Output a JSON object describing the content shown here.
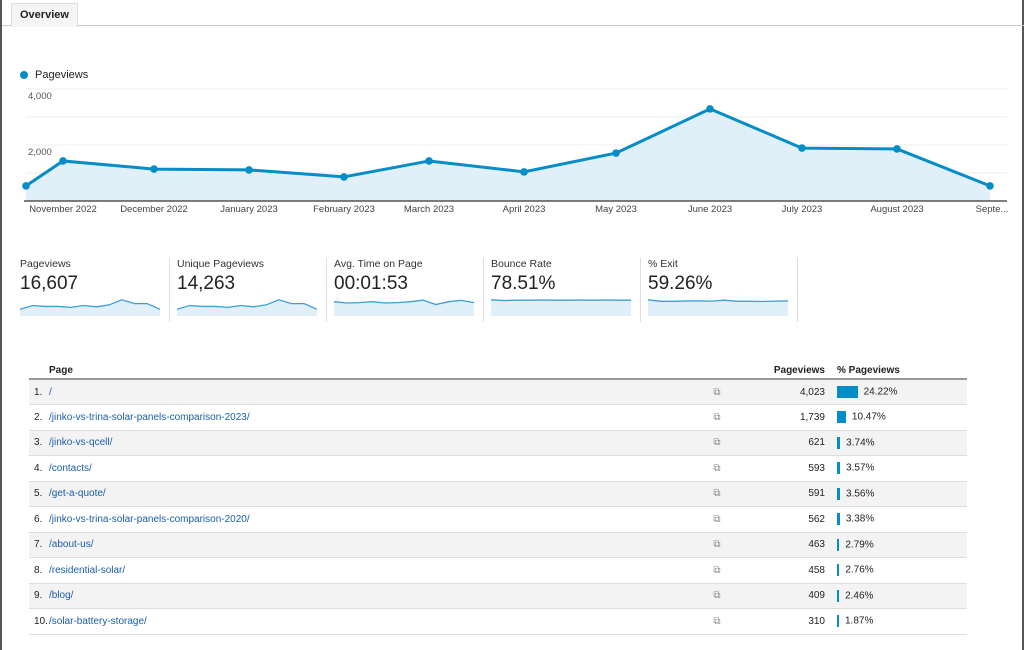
{
  "tab": "Overview",
  "legend": "Pageviews",
  "colors": {
    "accent": "#058dc7",
    "fill": "#e1f0f8"
  },
  "chart_data": {
    "type": "area",
    "series": [
      {
        "name": "Pageviews",
        "values": [
          540,
          1430,
          1140,
          1110,
          860,
          1430,
          1040,
          1710,
          3290,
          1890,
          1860,
          540
        ]
      }
    ],
    "x_labels": [
      "November 2022",
      "December 2022",
      "January 2023",
      "February 2023",
      "March 2023",
      "April 2023",
      "May 2023",
      "June 2023",
      "July 2023",
      "August 2023",
      "Septe..."
    ],
    "y_ticks": [
      "4,000",
      "2,000"
    ],
    "ylim": [
      0,
      4000
    ]
  },
  "metrics": [
    {
      "label": "Pageviews",
      "value": "16,607",
      "spark": [
        3,
        5,
        4.5,
        4.5,
        4,
        5,
        4.3,
        5.3,
        8,
        6,
        6,
        3
      ]
    },
    {
      "label": "Unique Pageviews",
      "value": "14,263",
      "spark": [
        3,
        5,
        4.5,
        4.5,
        4,
        5,
        4.3,
        5.3,
        8,
        6,
        6,
        3
      ]
    },
    {
      "label": "Avg. Time on Page",
      "value": "00:01:53",
      "spark": [
        7,
        6.3,
        6.5,
        7,
        6.3,
        6.5,
        7,
        7.8,
        5.5,
        7,
        7.7,
        6.5
      ]
    },
    {
      "label": "Bounce Rate",
      "value": "78.51%",
      "spark": [
        8,
        7.6,
        7.8,
        7.8,
        7.9,
        7.8,
        7.8,
        7.9,
        7.8,
        7.9,
        7.8,
        7.8
      ]
    },
    {
      "label": "% Exit",
      "value": "59.26%",
      "spark": [
        8,
        7.2,
        7.2,
        7.4,
        7.4,
        7.3,
        7.8,
        7.2,
        7.2,
        7.1,
        7.3,
        7.4
      ]
    }
  ],
  "table": {
    "headers": {
      "page": "Page",
      "pageviews": "Pageviews",
      "pct": "% Pageviews"
    },
    "rows": [
      {
        "n": "1.",
        "page": "/",
        "pv": "4,023",
        "pct": "24.22%",
        "frac": 0.2422
      },
      {
        "n": "2.",
        "page": "/jinko-vs-trina-solar-panels-comparison-2023/",
        "pv": "1,739",
        "pct": "10.47%",
        "frac": 0.1047
      },
      {
        "n": "3.",
        "page": "/jinko-vs-qcell/",
        "pv": "621",
        "pct": "3.74%",
        "frac": 0.0374
      },
      {
        "n": "4.",
        "page": "/contacts/",
        "pv": "593",
        "pct": "3.57%",
        "frac": 0.0357
      },
      {
        "n": "5.",
        "page": "/get-a-quote/",
        "pv": "591",
        "pct": "3.56%",
        "frac": 0.0356
      },
      {
        "n": "6.",
        "page": "/jinko-vs-trina-solar-panels-comparison-2020/",
        "pv": "562",
        "pct": "3.38%",
        "frac": 0.0338
      },
      {
        "n": "7.",
        "page": "/about-us/",
        "pv": "463",
        "pct": "2.79%",
        "frac": 0.0279
      },
      {
        "n": "8.",
        "page": "/residential-solar/",
        "pv": "458",
        "pct": "2.76%",
        "frac": 0.0276
      },
      {
        "n": "9.",
        "page": "/blog/",
        "pv": "409",
        "pct": "2.46%",
        "frac": 0.0246
      },
      {
        "n": "10.",
        "page": "/solar-battery-storage/",
        "pv": "310",
        "pct": "1.87%",
        "frac": 0.0187
      }
    ]
  }
}
